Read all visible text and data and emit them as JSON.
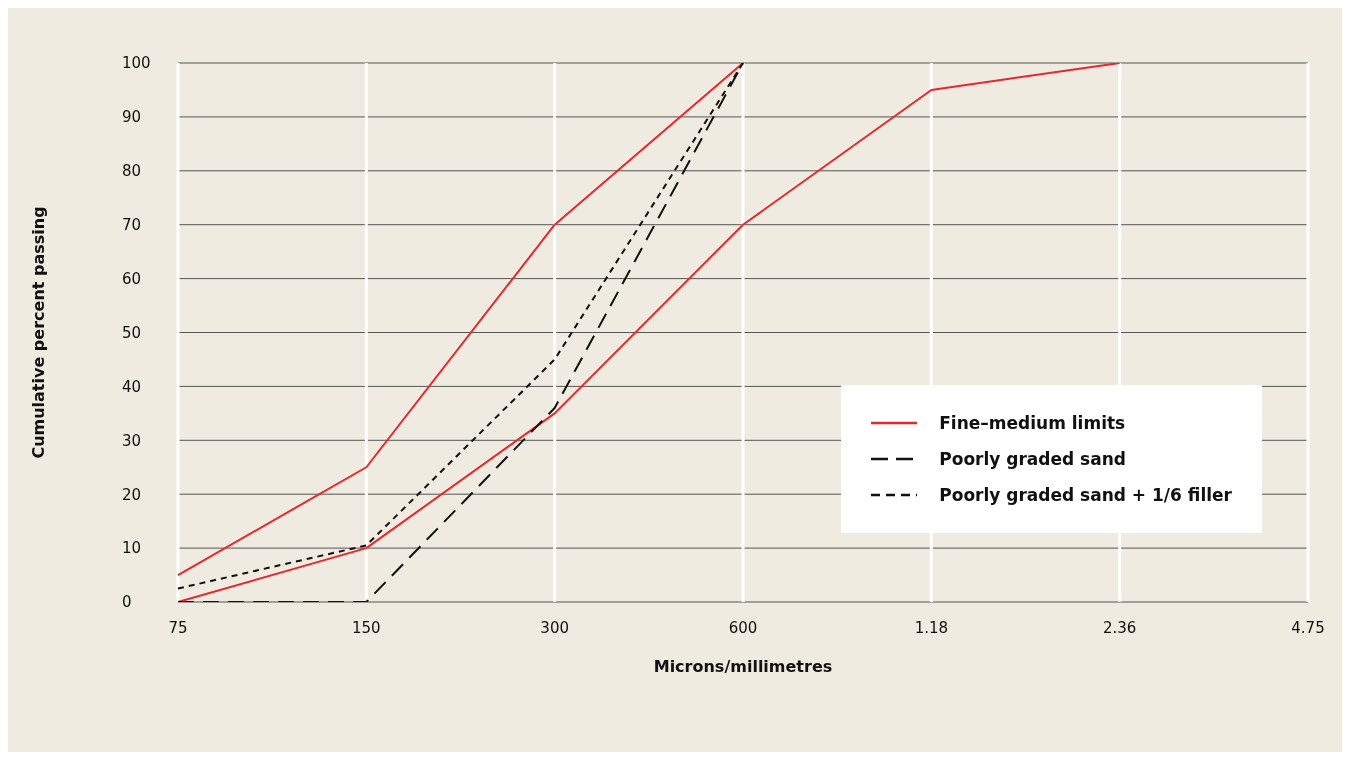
{
  "chart_data": {
    "type": "line",
    "xlabel": "Microns/millimetres",
    "ylabel": "Cumulative percent passing",
    "categories": [
      "75",
      "150",
      "300",
      "600",
      "1.18",
      "2.36",
      "4.75"
    ],
    "series": [
      {
        "name": "Fine–medium limits",
        "color": "#e8262d",
        "line_style": "solid",
        "values": [
          5,
          25,
          70,
          100,
          null,
          null,
          null
        ]
      },
      {
        "color": "#e8262d",
        "line_style": "solid",
        "values": [
          0,
          10,
          35,
          70,
          95,
          100,
          null
        ]
      },
      {
        "name": "Poorly graded sand",
        "color": "#111111",
        "line_style": "dashed",
        "values": [
          0,
          0,
          36,
          100,
          null,
          null,
          null
        ]
      },
      {
        "name": "Poorly graded sand + 1/6 filler",
        "color": "#111111",
        "line_style": "dotted",
        "values": [
          2.5,
          10.5,
          45,
          100,
          null,
          null,
          null
        ]
      }
    ],
    "ylim": [
      0,
      100
    ],
    "yticks": [
      0,
      10,
      20,
      30,
      40,
      50,
      60,
      70,
      80,
      90,
      100
    ],
    "grid": true,
    "legend": "right",
    "marker": "none"
  }
}
